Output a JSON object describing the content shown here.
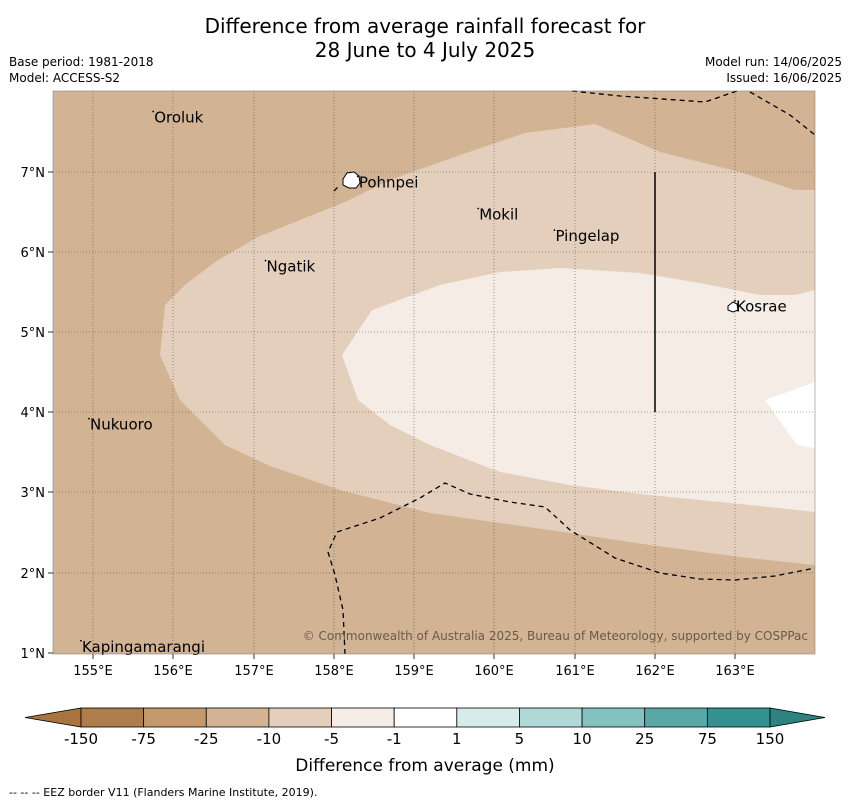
{
  "title_line1": "Difference from average rainfall forecast for",
  "title_line2": "28 June to 4 July 2025",
  "base_period": "Base period: 1981-2018",
  "model": "Model: ACCESS-S2",
  "model_run": "Model run: 14/06/2025",
  "issued": "Issued: 16/06/2025",
  "copyright": "© Commonwealth of Australia 2025, Bureau of Meteorology, supported by COSPPac",
  "footnote": "--  --  -- EEZ border V11 (Flanders Marine Institute, 2019).",
  "x_ticks": [
    "155°E",
    "156°E",
    "157°E",
    "158°E",
    "159°E",
    "160°E",
    "161°E",
    "162°E",
    "163°E"
  ],
  "y_ticks": [
    "7°N",
    "6°N",
    "5°N",
    "4°N",
    "3°N",
    "2°N",
    "1°N"
  ],
  "places": [
    {
      "name": "Oroluk",
      "lon": 155.75,
      "lat": 7.68
    },
    {
      "name": "Pohnpei",
      "lon": 158.3,
      "lat": 6.87
    },
    {
      "name": "Mokil",
      "lon": 159.8,
      "lat": 6.47
    },
    {
      "name": "Pingelap",
      "lon": 160.75,
      "lat": 6.2
    },
    {
      "name": "Ngatik",
      "lon": 157.15,
      "lat": 5.82
    },
    {
      "name": "Kosrae",
      "lon": 163.0,
      "lat": 5.32
    },
    {
      "name": "Nukuoro",
      "lon": 154.95,
      "lat": 3.85
    },
    {
      "name": "Kapingamarangi",
      "lon": 154.85,
      "lat": 1.08
    }
  ],
  "colorbar": {
    "title": "Difference from average (mm)",
    "labels": [
      "-150",
      "-75",
      "-25",
      "-10",
      "-5",
      "-1",
      "1",
      "5",
      "10",
      "25",
      "75",
      "150"
    ],
    "colors": [
      "#a97440",
      "#ad7d4c",
      "#c49a6c",
      "#d2b394",
      "#e4cfbd",
      "#f5ece5",
      "#ffffff",
      "#d6ebea",
      "#b0d8d6",
      "#83c2bf",
      "#58a9a6",
      "#35918f",
      "#2e8380"
    ]
  },
  "fill_colors": {
    "band_25_10": "#d2b394",
    "band_10_5": "#e4cfbd",
    "band_5_1": "#f5ece5",
    "band_neutral": "#ffffff"
  }
}
